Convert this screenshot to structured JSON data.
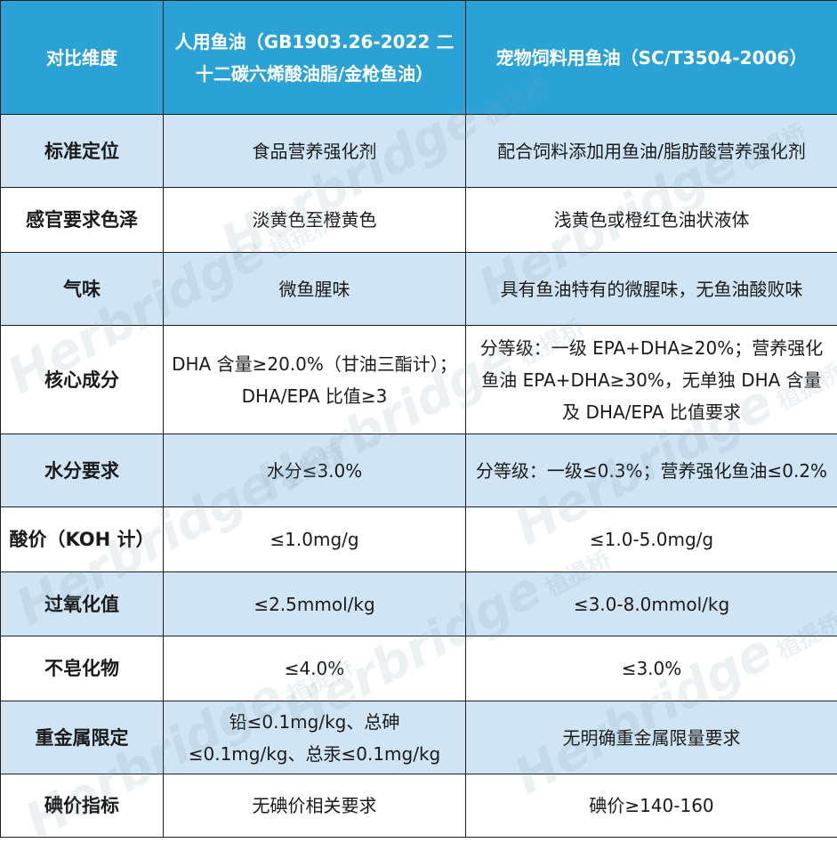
{
  "table": {
    "headers": [
      "对比维度",
      "人用鱼油（GB1903.26-2022 二十二碳六烯酸油脂/金枪鱼油）",
      "宠物饲料用鱼油（SC/T3504-2006）"
    ],
    "rows": [
      {
        "dimension": "标准定位",
        "human": "食品营养强化剂",
        "pet": "配合饲料添加用鱼油/脂肪酸营养强化剂"
      },
      {
        "dimension": "感官要求色泽",
        "human": "淡黄色至橙黄色",
        "pet": "浅黄色或橙红色油状液体"
      },
      {
        "dimension": "气味",
        "human": "微鱼腥味",
        "pet": "具有鱼油特有的微腥味，无鱼油酸败味"
      },
      {
        "dimension": "核心成分",
        "human": "DHA 含量≥20.0%（甘油三酯计）；DHA/EPA 比值≥3",
        "pet": "分等级：一级 EPA+DHA≥20%；营养强化鱼油 EPA+DHA≥30%，无单独 DHA 含量及 DHA/EPA 比值要求"
      },
      {
        "dimension": "水分要求",
        "human": "水分≤3.0%",
        "pet": "分等级：一级≤0.3%；营养强化鱼油≤0.2%"
      },
      {
        "dimension": "酸价（KOH 计）",
        "human": "≤1.0mg/g",
        "pet": "≤1.0-5.0mg/g"
      },
      {
        "dimension": "过氧化值",
        "human": "≤2.5mmol/kg",
        "pet": "≤3.0-8.0mmol/kg"
      },
      {
        "dimension": "不皂化物",
        "human": "≤4.0%",
        "pet": "≤3.0%"
      },
      {
        "dimension": "重金属限定",
        "human": "铅≤0.1mg/kg、总砷≤0.1mg/kg、总汞≤0.1mg/kg",
        "pet": "无明确重金属限量要求"
      },
      {
        "dimension": "碘价指标",
        "human": "无碘价相关要求",
        "pet": "碘价≥140-160"
      }
    ]
  },
  "watermark": {
    "brand": "Herbridge",
    "brand_zh": "植提桥"
  },
  "colors": {
    "header_bg": "#2aa2d6",
    "stripe_bg": "#cfe4f4",
    "border": "#1f1f1f"
  }
}
